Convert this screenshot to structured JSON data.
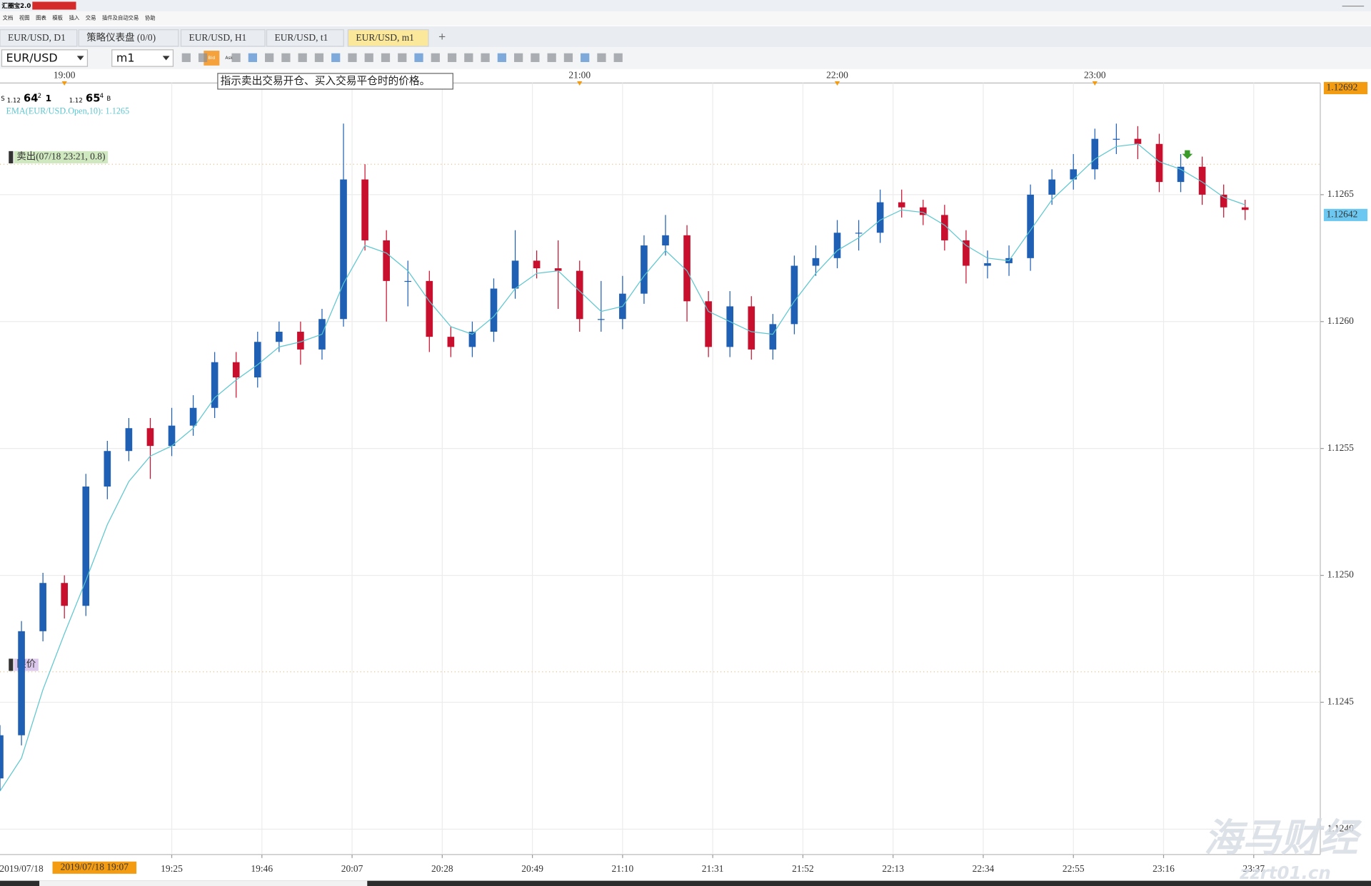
{
  "ui": {
    "app_title": "汇圈宝2.0",
    "menu": [
      "文档",
      "视图",
      "图表",
      "模板",
      "插入",
      "交易",
      "插件及自动交易",
      "协助"
    ],
    "tabs": [
      "EUR/USD, D1",
      "策略仪表盘 (0/0)",
      "EUR/USD, H1",
      "EUR/USD, t1",
      "EUR/USD, m1"
    ],
    "symbol": "EUR/USD",
    "period": "m1",
    "bid_button": "Bid",
    "ask_button": "Ask",
    "tooltip": "指示卖出交易开仓、买入交易平仓时的价格。",
    "quote_bid": {
      "side": "S",
      "prefix": "1.12",
      "pips": "64",
      "fraction": "2",
      "spread": "1"
    },
    "quote_ask": {
      "prefix": "1.12",
      "pips": "65",
      "fraction": "4",
      "side": "B"
    },
    "watermark": "海马财经",
    "watermark_url": "zzrt01.cn"
  },
  "chart_data": {
    "type": "candlestick",
    "up_color": "#1f5fb4",
    "down_color": "#c8102e",
    "open": [
      1.1242,
      1.12437,
      1.12478,
      1.12497,
      1.12488,
      1.12535,
      1.12549,
      1.12558,
      1.12551,
      1.12559,
      1.12566,
      1.12584,
      1.12578,
      1.12592,
      1.12596,
      1.12589,
      1.12601,
      1.12656,
      1.12632,
      1.12616,
      1.12616,
      1.12594,
      1.1259,
      1.12596,
      1.12613,
      1.12624,
      1.12621,
      1.1262,
      1.12601,
      1.12601,
      1.12611,
      1.1263,
      1.12634,
      1.12608,
      1.1259,
      1.12606,
      1.12589,
      1.12599,
      1.12622,
      1.12625,
      1.12635,
      1.12635,
      1.12647,
      1.12645,
      1.12642,
      1.12632,
      1.12622,
      1.12623,
      1.12625,
      1.1265,
      1.12656,
      1.1266,
      1.12672,
      1.12672,
      1.1267,
      1.12655,
      1.12661,
      1.1265,
      1.12645
    ],
    "high": [
      1.12441,
      1.12482,
      1.12501,
      1.125,
      1.1254,
      1.12553,
      1.12562,
      1.12562,
      1.12566,
      1.12571,
      1.12588,
      1.12588,
      1.12596,
      1.126,
      1.126,
      1.12605,
      1.12678,
      1.12662,
      1.12636,
      1.12624,
      1.1262,
      1.12598,
      1.126,
      1.12617,
      1.12636,
      1.12628,
      1.12632,
      1.12624,
      1.12616,
      1.12618,
      1.12634,
      1.12642,
      1.12638,
      1.12612,
      1.12612,
      1.1261,
      1.12603,
      1.12626,
      1.1263,
      1.1264,
      1.1264,
      1.12652,
      1.12652,
      1.12648,
      1.12646,
      1.12636,
      1.12628,
      1.1263,
      1.12654,
      1.1266,
      1.12666,
      1.12676,
      1.12678,
      1.12677,
      1.12674,
      1.12666,
      1.12665,
      1.12654,
      1.12648
    ],
    "low": [
      1.12415,
      1.12433,
      1.12474,
      1.12483,
      1.12484,
      1.1253,
      1.12545,
      1.12538,
      1.12547,
      1.12555,
      1.12562,
      1.1257,
      1.12574,
      1.12588,
      1.12583,
      1.12585,
      1.12598,
      1.12628,
      1.126,
      1.12606,
      1.12588,
      1.12586,
      1.12586,
      1.12592,
      1.12609,
      1.12617,
      1.12605,
      1.12596,
      1.12596,
      1.12597,
      1.12607,
      1.12626,
      1.126,
      1.12586,
      1.12586,
      1.12585,
      1.12585,
      1.12595,
      1.12618,
      1.12621,
      1.12628,
      1.12631,
      1.12641,
      1.12638,
      1.12628,
      1.12615,
      1.12617,
      1.12618,
      1.1262,
      1.12646,
      1.12652,
      1.12656,
      1.12666,
      1.12664,
      1.12651,
      1.12651,
      1.12646,
      1.12641,
      1.1264
    ],
    "close": [
      1.12437,
      1.12478,
      1.12497,
      1.12488,
      1.12535,
      1.12549,
      1.12558,
      1.12551,
      1.12559,
      1.12566,
      1.12584,
      1.12578,
      1.12592,
      1.12596,
      1.12589,
      1.12601,
      1.12656,
      1.12632,
      1.12616,
      1.12616,
      1.12594,
      1.1259,
      1.12596,
      1.12613,
      1.12624,
      1.12621,
      1.1262,
      1.12601,
      1.12601,
      1.12611,
      1.1263,
      1.12634,
      1.12608,
      1.1259,
      1.12606,
      1.12589,
      1.12599,
      1.12622,
      1.12625,
      1.12635,
      1.12635,
      1.12647,
      1.12645,
      1.12642,
      1.12632,
      1.12622,
      1.12623,
      1.12625,
      1.1265,
      1.12656,
      1.1266,
      1.12672,
      1.12672,
      1.1267,
      1.12655,
      1.12661,
      1.1265,
      1.12645,
      1.12644
    ],
    "ema": {
      "name": "EMA(EUR/USD.Open,10): 1.1265",
      "color": "#5cc6cf",
      "values": [
        1.12415,
        1.12428,
        1.12455,
        1.12477,
        1.12498,
        1.1252,
        1.12537,
        1.12547,
        1.12551,
        1.12558,
        1.1257,
        1.12577,
        1.12583,
        1.1259,
        1.12592,
        1.12595,
        1.12615,
        1.1263,
        1.12627,
        1.1262,
        1.12608,
        1.12598,
        1.12595,
        1.12602,
        1.12613,
        1.12619,
        1.1262,
        1.12612,
        1.12604,
        1.12606,
        1.12618,
        1.12628,
        1.1262,
        1.12604,
        1.126,
        1.12596,
        1.12595,
        1.12608,
        1.12619,
        1.12628,
        1.12633,
        1.1264,
        1.12644,
        1.12643,
        1.12638,
        1.1263,
        1.12625,
        1.12624,
        1.12636,
        1.12648,
        1.12656,
        1.12664,
        1.12669,
        1.1267,
        1.12663,
        1.1266,
        1.12655,
        1.12649,
        1.12646
      ]
    },
    "xlim": [
      0,
      61.5
    ],
    "ylim": [
      1.1239,
      1.12694
    ],
    "yticks": [
      {
        "value": 1.124,
        "label": "1.1240"
      },
      1.1245,
      {
        "value": 1.125,
        "label": "1.1250"
      },
      1.1255,
      {
        "value": 1.126,
        "label": "1.1260"
      },
      1.1265
    ],
    "xticks": [
      {
        "value": 8,
        "label": "19:25"
      },
      {
        "value": 12.2,
        "label": "19:46"
      },
      {
        "value": 16.4,
        "label": "20:07"
      },
      {
        "value": 20.6,
        "label": "20:28"
      },
      {
        "value": 24.8,
        "label": "20:49"
      },
      {
        "value": 29,
        "label": "21:10"
      },
      {
        "value": 33.2,
        "label": "21:31"
      },
      {
        "value": 37.4,
        "label": "21:52"
      },
      {
        "value": 41.6,
        "label": "22:13"
      },
      {
        "value": 45.8,
        "label": "22:34"
      },
      {
        "value": 50,
        "label": "22:55"
      },
      {
        "value": 54.2,
        "label": "23:16"
      },
      {
        "value": 58.4,
        "label": "23:37"
      }
    ],
    "top_xticks": [
      {
        "value": 3,
        "label": "19:00"
      },
      {
        "value": 27,
        "label": "21:00"
      },
      {
        "value": 39,
        "label": "22:00"
      },
      {
        "value": 51,
        "label": "23:00"
      }
    ],
    "date_label": {
      "value": 1,
      "label": "2019/07/18"
    },
    "cursor_x": {
      "value": 4.4,
      "label": "2019/07/18 19:07"
    },
    "price_tags": [
      {
        "value": 1.12692,
        "color": "#f39c12"
      },
      {
        "value": 1.12642,
        "color": "#6cc8f0"
      }
    ],
    "levels": [
      {
        "label": "卖出(07/18 23:21, 0.8)",
        "value": 1.12662,
        "color": "#cfe8c0"
      },
      {
        "label": "限价",
        "value": 1.12462,
        "color": "#dcc8ec"
      }
    ],
    "grid": true
  }
}
